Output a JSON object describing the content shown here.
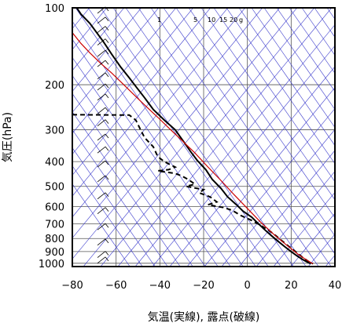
{
  "chart_data": {
    "type": "line",
    "xlabel": "気温(実線), 露点(破線)",
    "ylabel": "気圧(hPa)",
    "xlim": [
      -80,
      40
    ],
    "ylim": [
      1030,
      100
    ],
    "y_scale": "log",
    "x_ticks": [
      -80,
      -60,
      -40,
      -20,
      0,
      20,
      40
    ],
    "y_ticks": [
      100,
      200,
      300,
      400,
      500,
      600,
      700,
      800,
      900,
      1000
    ],
    "mixing_ratio_labels": [
      "1",
      "5",
      "10",
      "15",
      "20",
      "g"
    ],
    "series": [
      {
        "line": "solid",
        "color": "#000000",
        "points": [
          [
            -78,
            100
          ],
          [
            -76,
            106
          ],
          [
            -72,
            115
          ],
          [
            -66,
            135
          ],
          [
            -62,
            152
          ],
          [
            -58,
            170
          ],
          [
            -54,
            188
          ],
          [
            -51,
            203
          ],
          [
            -47,
            225
          ],
          [
            -43,
            250
          ],
          [
            -38,
            275
          ],
          [
            -33,
            300
          ],
          [
            -29,
            335
          ],
          [
            -26,
            365
          ],
          [
            -23,
            395
          ],
          [
            -19,
            430
          ],
          [
            -16,
            470
          ],
          [
            -12,
            510
          ],
          [
            -9,
            550
          ],
          [
            -5,
            590
          ],
          [
            -2,
            625
          ],
          [
            2,
            660
          ],
          [
            5,
            700
          ],
          [
            8,
            740
          ],
          [
            11,
            780
          ],
          [
            14,
            820
          ],
          [
            17,
            860
          ],
          [
            20,
            900
          ],
          [
            23,
            940
          ],
          [
            26,
            975
          ],
          [
            29,
            1005
          ]
        ]
      },
      {
        "line": "dashed",
        "color": "#000000",
        "points": [
          [
            -80,
            262
          ],
          [
            -54,
            263
          ],
          [
            -51,
            275
          ],
          [
            -49,
            298
          ],
          [
            -47,
            322
          ],
          [
            -43,
            350
          ],
          [
            -41,
            382
          ],
          [
            -38,
            400
          ],
          [
            -33,
            420
          ],
          [
            -36,
            430
          ],
          [
            -41,
            435
          ],
          [
            -33,
            445
          ],
          [
            -30,
            455
          ],
          [
            -27,
            470
          ],
          [
            -24,
            490
          ],
          [
            -28,
            500
          ],
          [
            -20,
            515
          ],
          [
            -22,
            530
          ],
          [
            -17,
            550
          ],
          [
            -14,
            575
          ],
          [
            -18,
            590
          ],
          [
            -11,
            605
          ],
          [
            -7,
            620
          ],
          [
            -3,
            650
          ],
          [
            2,
            680
          ],
          [
            6,
            710
          ],
          [
            10,
            745
          ],
          [
            13,
            780
          ],
          [
            16,
            820
          ],
          [
            19,
            860
          ],
          [
            22,
            900
          ],
          [
            25,
            945
          ],
          [
            28,
            985
          ],
          [
            30,
            1005
          ]
        ]
      },
      {
        "line": "solid",
        "color": "#cc0000",
        "points": [
          [
            -80,
            125
          ],
          [
            -76,
            138
          ],
          [
            -72,
            150
          ],
          [
            -67,
            165
          ],
          [
            -62,
            180
          ],
          [
            -57,
            198
          ],
          [
            -52,
            218
          ],
          [
            -47,
            240
          ],
          [
            -41,
            268
          ],
          [
            -36,
            295
          ],
          [
            -30,
            330
          ],
          [
            -24,
            370
          ],
          [
            -18,
            420
          ],
          [
            -12,
            475
          ],
          [
            -6,
            540
          ],
          [
            0,
            610
          ],
          [
            6,
            690
          ],
          [
            12,
            770
          ],
          [
            18,
            850
          ],
          [
            23,
            920
          ],
          [
            27,
            970
          ],
          [
            30,
            1005
          ]
        ]
      }
    ]
  }
}
